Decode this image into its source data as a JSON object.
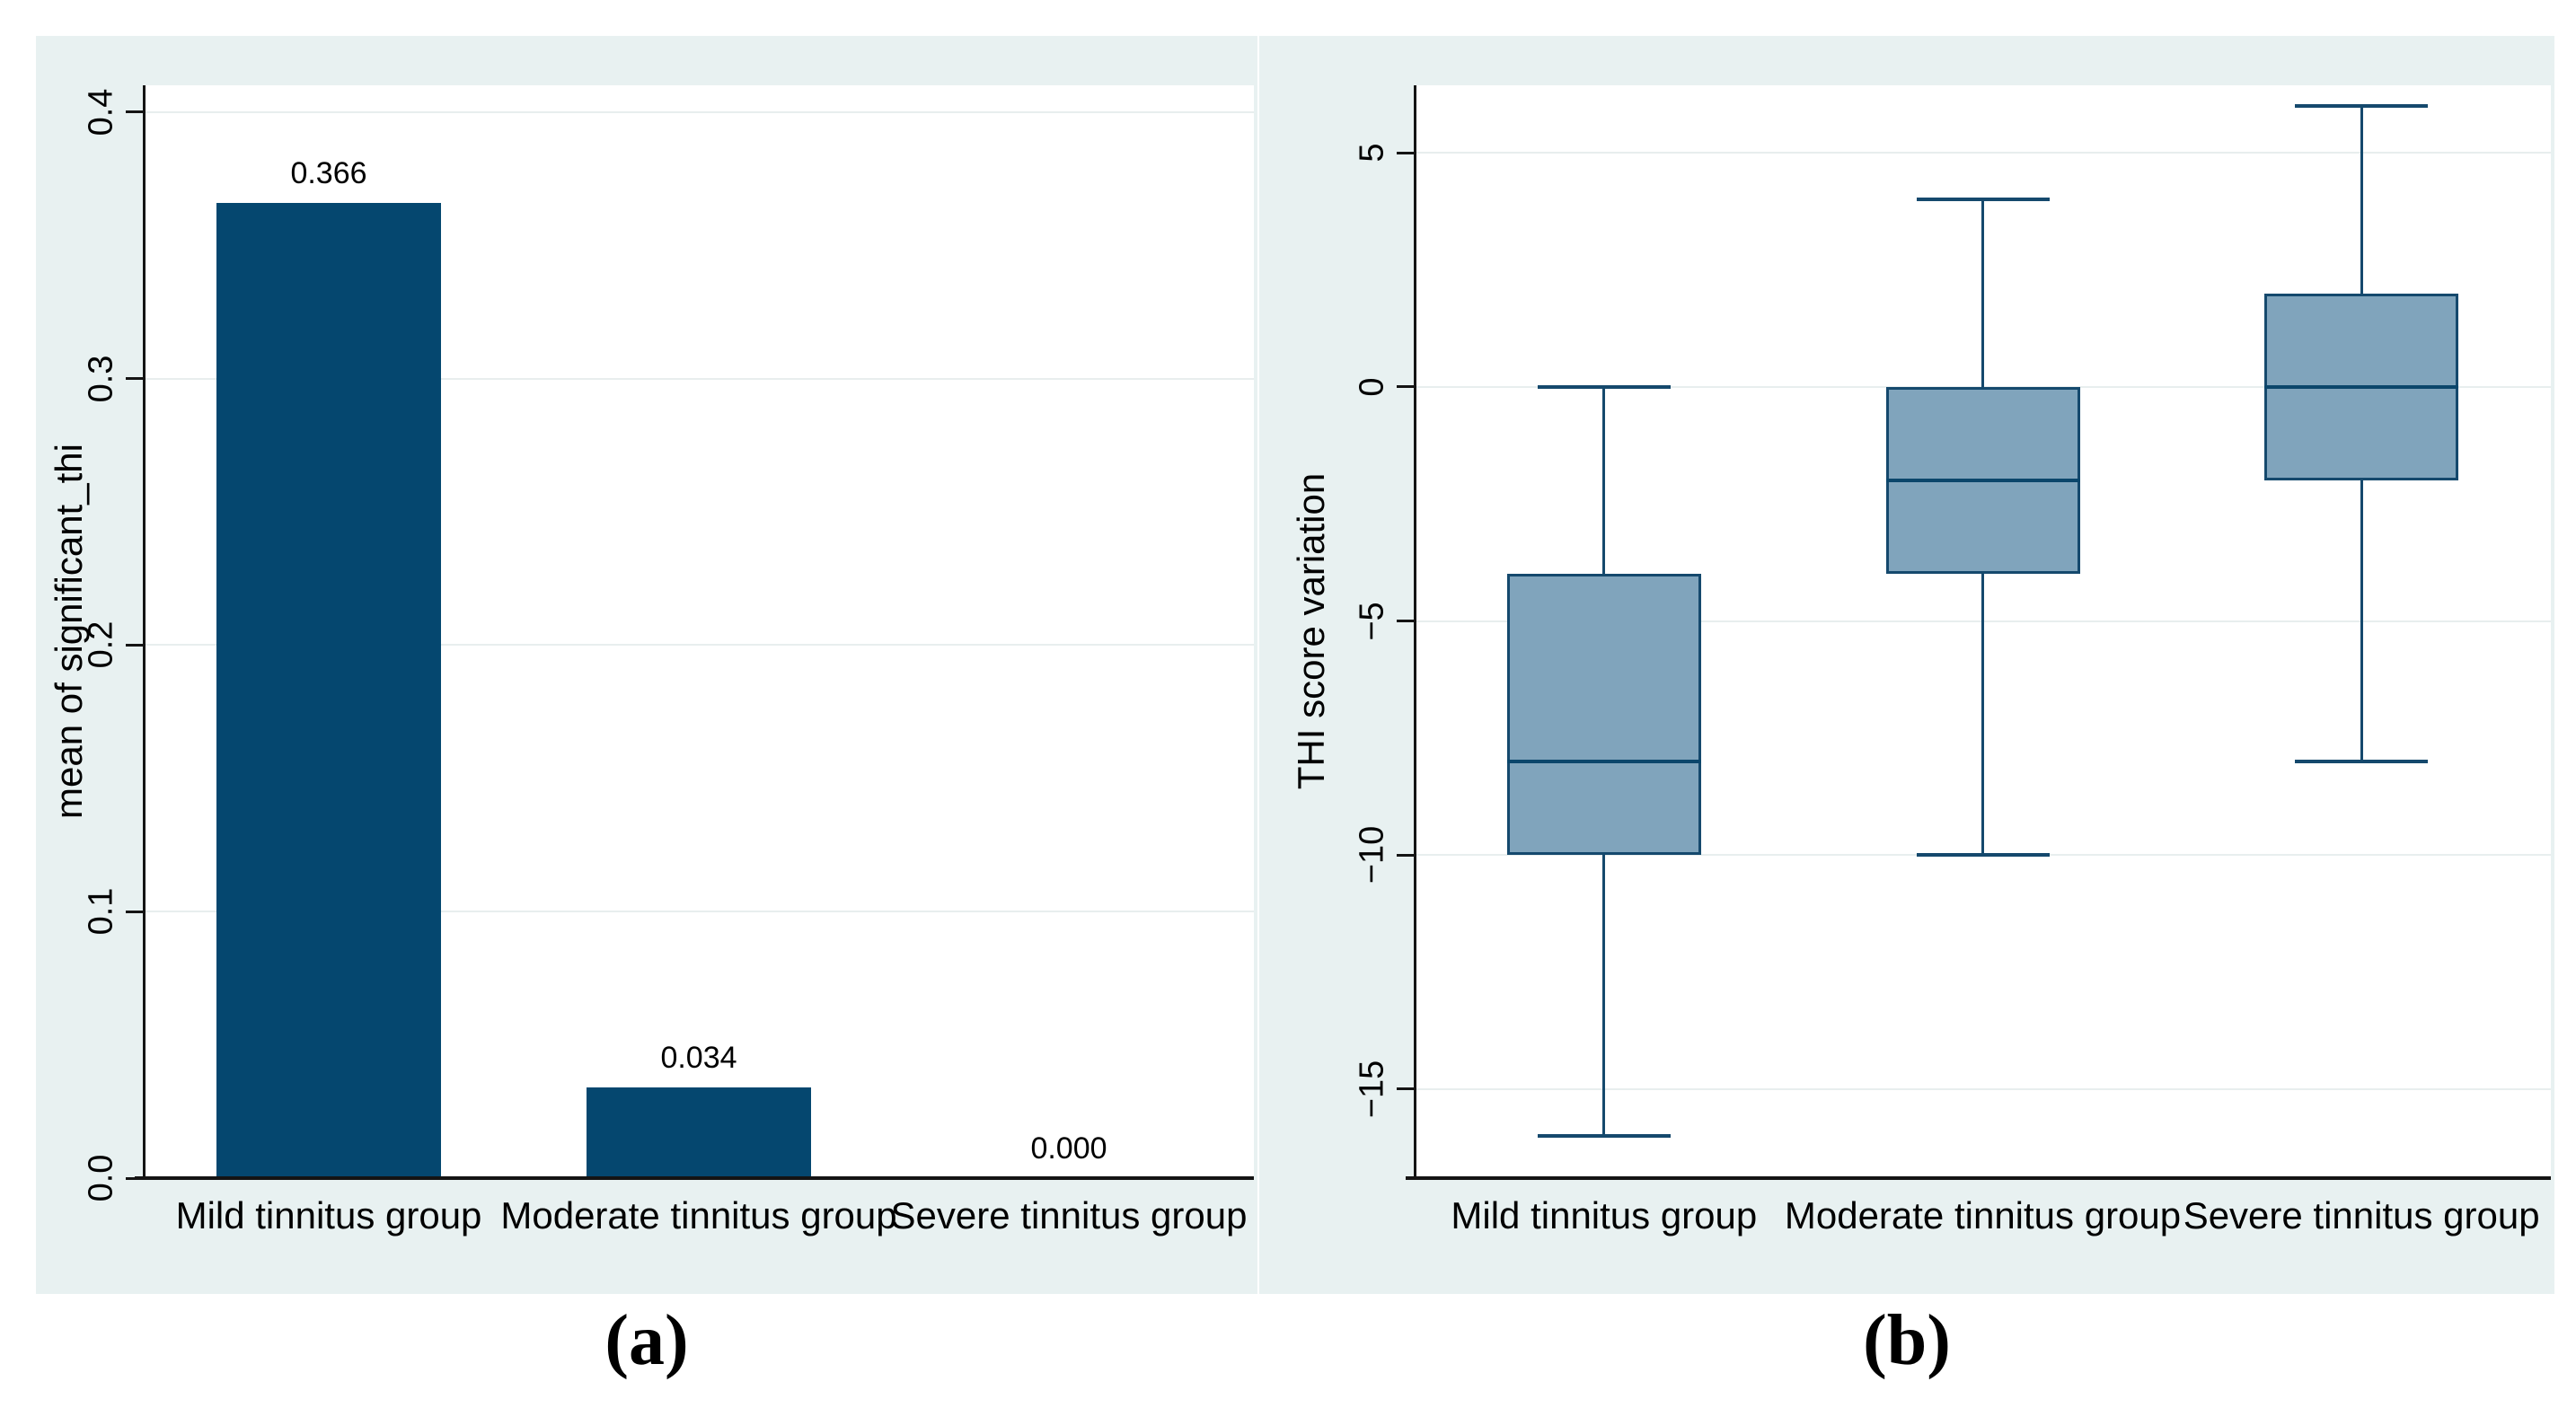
{
  "figure": {
    "captions": [
      {
        "label": "(a)"
      },
      {
        "label": "(b)"
      }
    ]
  },
  "colors": {
    "panel_background": "#e8f1f1",
    "plot_background": "#ffffff",
    "gridline": "#e8eeee",
    "axis": "#141414",
    "text": "#000000",
    "bar_fill": "#05476f",
    "box_fill": "#80a4bc",
    "box_border": "#15496d",
    "median_line": "#0b466b",
    "whisker": "#15496d"
  },
  "chart_data": [
    {
      "type": "bar",
      "panel": "a",
      "title": "",
      "xlabel": "",
      "ylabel": "mean of significant_thi",
      "categories": [
        "Mild tinnitus group",
        "Moderate tinnitus group",
        "Severe tinnitus group"
      ],
      "values": [
        0.366,
        0.034,
        0
      ],
      "value_labels": [
        "0.366",
        "0.034",
        "0.000"
      ],
      "yticks": [
        0,
        0.1,
        0.2,
        0.3,
        0.4
      ],
      "ytick_labels": [
        "0.0",
        "0.1",
        "0.2",
        "0.3",
        "0.4"
      ],
      "ylim": [
        0,
        0.41
      ],
      "grid": true,
      "legend": "none"
    },
    {
      "type": "box",
      "panel": "b",
      "title": "",
      "xlabel": "",
      "ylabel": "THI score variation",
      "categories": [
        "Mild tinnitus group",
        "Moderate tinnitus group",
        "Severe tinnitus group"
      ],
      "series": [
        {
          "name": "Mild tinnitus group",
          "whisker_low": -16,
          "q1": -10,
          "median": -8,
          "q3": -4,
          "whisker_high": 0
        },
        {
          "name": "Moderate tinnitus group",
          "whisker_low": -10,
          "q1": -4,
          "median": -2,
          "q3": 0,
          "whisker_high": 4
        },
        {
          "name": "Severe tinnitus group",
          "whisker_low": -8,
          "q1": -2,
          "median": 0,
          "q3": 2,
          "whisker_high": 6
        }
      ],
      "yticks": [
        5,
        0,
        -5,
        -10,
        -15
      ],
      "ytick_labels": [
        "5",
        "0",
        "−5",
        "−10",
        "−15"
      ],
      "ylim": [
        -16.9,
        6.44
      ],
      "grid": true,
      "legend": "none"
    }
  ]
}
